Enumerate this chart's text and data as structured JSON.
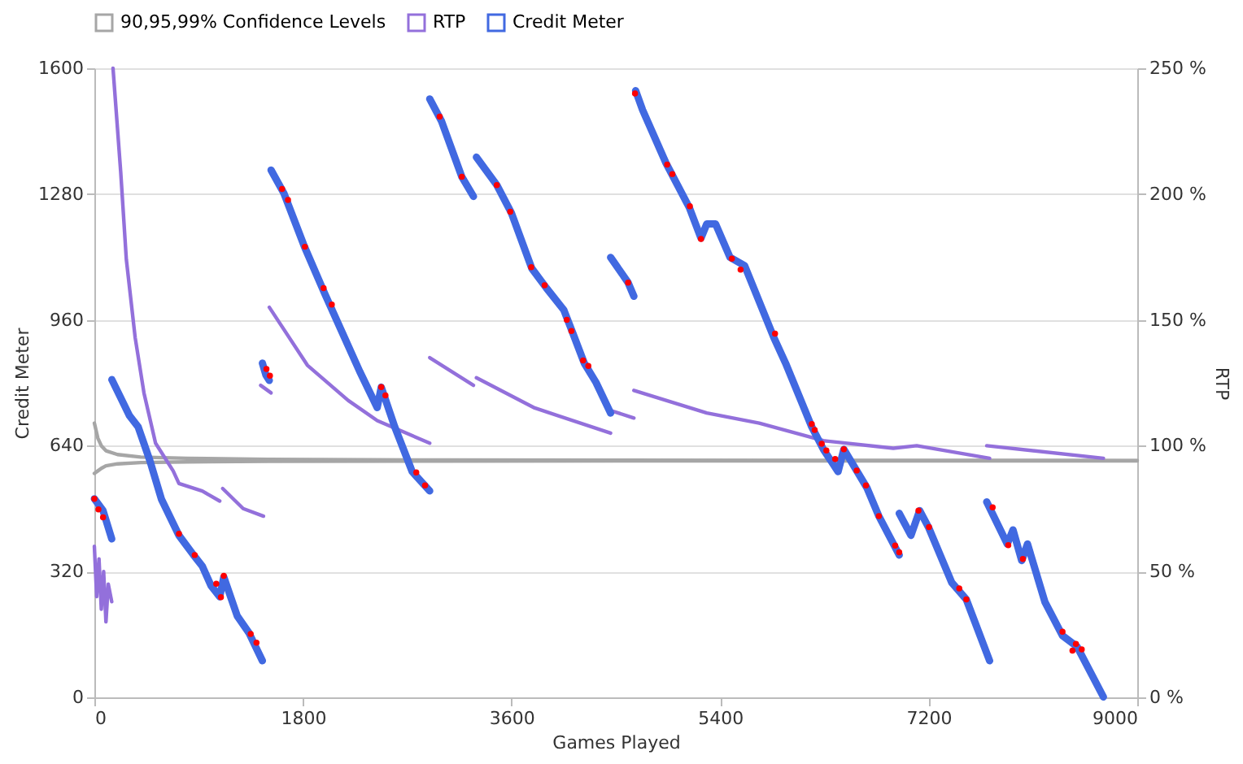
{
  "chart_data": {
    "type": "line",
    "xlabel": "Games Played",
    "ylabel": "Credit Meter",
    "y2label": "RTP",
    "xlim": [
      0,
      9000
    ],
    "xticks": [
      0,
      1800,
      3600,
      5400,
      7200,
      9000
    ],
    "ylim": [
      0,
      1600
    ],
    "yticks": [
      0,
      320,
      640,
      960,
      1280,
      1600
    ],
    "y2lim": [
      0,
      250
    ],
    "y2ticks": [
      {
        "value": 0,
        "label": "0 %"
      },
      {
        "value": 50,
        "label": "50 %"
      },
      {
        "value": 100,
        "label": "100 %"
      },
      {
        "value": 150,
        "label": "150 %"
      },
      {
        "value": 200,
        "label": "200 %"
      },
      {
        "value": 250,
        "label": "250 %"
      }
    ],
    "grid": "y",
    "legend": "top",
    "line_style": "solid",
    "series": [
      {
        "name": "90,95,99% Confidence Levels",
        "axis": "y2",
        "color": "#a6a6a6",
        "x": [
          0,
          30,
          60,
          100,
          200,
          400,
          800,
          1500,
          3000,
          6000,
          9000
        ],
        "values": [
          109,
          103,
          100,
          98,
          96.5,
          95.5,
          95,
          94.6,
          94.3,
          94.2,
          94.1
        ]
      },
      {
        "axis": "y2",
        "color": "#a6a6a6",
        "x": [
          0,
          30,
          60,
          100,
          200,
          400,
          800,
          1500,
          3000,
          6000,
          9000
        ],
        "values": [
          89,
          90,
          91,
          92,
          92.8,
          93.3,
          93.6,
          93.8,
          93.9,
          94,
          94
        ]
      },
      {
        "name": "RTP",
        "axis": "y2",
        "color": "#9370db",
        "x": [
          161,
          227,
          276,
          352,
          428,
          528,
          680,
          730,
          931,
          1082
        ],
        "values": [
          250,
          209,
          174,
          143,
          121,
          101,
          90,
          85,
          82,
          78
        ]
      },
      {
        "axis": "y2",
        "color": "#9370db",
        "x": [
          0,
          20,
          40,
          60,
          80,
          100,
          120,
          150
        ],
        "values": [
          60,
          40,
          55,
          35,
          50,
          30,
          45,
          38
        ]
      },
      {
        "axis": "y2",
        "color": "#9370db",
        "x": [
          1107,
          1284,
          1460
        ],
        "values": [
          83,
          75,
          72
        ]
      },
      {
        "axis": "y2",
        "color": "#9370db",
        "x": [
          1435,
          1525
        ],
        "values": [
          124,
          121
        ]
      },
      {
        "axis": "y2",
        "color": "#9370db",
        "x": [
          1510,
          1838,
          2190,
          2441,
          2894
        ],
        "values": [
          155,
          132,
          118,
          110,
          101
        ]
      },
      {
        "axis": "y2",
        "color": "#9370db",
        "x": [
          2894,
          3272
        ],
        "values": [
          135,
          124
        ]
      },
      {
        "axis": "y2",
        "color": "#9370db",
        "x": [
          3297,
          3800,
          4455
        ],
        "values": [
          127,
          115,
          105
        ]
      },
      {
        "axis": "y2",
        "color": "#9370db",
        "x": [
          4455,
          4656
        ],
        "values": [
          114,
          111
        ]
      },
      {
        "axis": "y2",
        "color": "#9370db",
        "x": [
          4656,
          5285,
          5738,
          6291,
          6895,
          7097,
          7726
        ],
        "values": [
          122,
          113,
          109,
          102,
          99,
          100,
          95
        ]
      },
      {
        "axis": "y2",
        "color": "#9370db",
        "x": [
          7701,
          8708
        ],
        "values": [
          100,
          95
        ]
      },
      {
        "name": "Credit Meter",
        "color": "#4169e1",
        "x": [
          151,
          302,
          378,
          478,
          579,
          730,
          856,
          931,
          1007,
          1082,
          1117,
          1233,
          1334,
          1450
        ],
        "values": [
          808,
          717,
          688,
          603,
          504,
          412,
          362,
          334,
          284,
          256,
          306,
          207,
          164,
          93
        ]
      },
      {
        "color": "#4169e1",
        "x": [
          0,
          75,
          150
        ],
        "values": [
          505,
          475,
          403
        ]
      },
      {
        "color": "#4169e1",
        "x": [
          1450,
          1480,
          1510
        ],
        "values": [
          850,
          820,
          806
        ]
      },
      {
        "color": "#4169e1",
        "x": [
          1525,
          1636,
          1812,
          1988,
          2139,
          2290,
          2441,
          2476,
          2592,
          2743,
          2894
        ],
        "values": [
          1341,
          1282,
          1147,
          1027,
          928,
          829,
          737,
          789,
          688,
          574,
          525
        ]
      },
      {
        "color": "#4169e1",
        "x": [
          2894,
          2995,
          3171,
          3272
        ],
        "values": [
          1522,
          1466,
          1324,
          1274
        ]
      },
      {
        "color": "#4169e1",
        "x": [
          3297,
          3473,
          3599,
          3775,
          3901,
          4052,
          4127,
          4228,
          4329,
          4455
        ],
        "values": [
          1374,
          1303,
          1232,
          1091,
          1041,
          985,
          928,
          850,
          801,
          723
        ]
      },
      {
        "color": "#4169e1",
        "x": [
          4455,
          4606,
          4656
        ],
        "values": [
          1119,
          1055,
          1020
        ]
      },
      {
        "color": "#4169e1",
        "x": [
          4671,
          4731,
          4933,
          5134,
          5235,
          5285,
          5361,
          5486,
          5612,
          5864,
          5965,
          6191,
          6291,
          6418,
          6468,
          6669,
          6770,
          6946
        ],
        "values": [
          1543,
          1494,
          1359,
          1246,
          1168,
          1204,
          1204,
          1119,
          1098,
          915,
          850,
          688,
          631,
          574,
          631,
          532,
          461,
          362
        ]
      },
      {
        "color": "#4169e1",
        "x": [
          6946,
          7047,
          7122,
          7198,
          7399,
          7525,
          7726
        ],
        "values": [
          468,
          412,
          475,
          433,
          292,
          249,
          93
        ]
      },
      {
        "color": "#4169e1",
        "x": [
          7701,
          7878,
          7928,
          8003,
          8053,
          8204,
          8355,
          8481,
          8708
        ],
        "values": [
          497,
          390,
          426,
          348,
          390,
          242,
          157,
          129,
          1
        ]
      },
      {
        "type": "scatter",
        "color": "#ff0000",
        "marker": "circle",
        "x": [
          0,
          35,
          75,
          730,
          866,
          1052,
          1092,
          1117,
          1349,
          1399,
          1485,
          1515,
          1620,
          1671,
          1817,
          1978,
          2049,
          2476,
          2512,
          2778,
          2854,
          2980,
          3171,
          3473,
          3589,
          3770,
          3886,
          4077,
          4117,
          4218,
          4263,
          4606,
          4666,
          4943,
          4988,
          5139,
          5235,
          5501,
          5577,
          5874,
          6191,
          6216,
          6277,
          6317,
          6393,
          6468,
          6579,
          6659,
          6770,
          6911,
          6946,
          7112,
          7203,
          7464,
          7525,
          7752,
          7887,
          8013,
          8355,
          8441,
          8471,
          8521
        ],
        "values": [
          505,
          478,
          458,
          416,
          362,
          289,
          255,
          309,
          161,
          139,
          835,
          818,
          1293,
          1265,
          1146,
          1041,
          999,
          789,
          768,
          572,
          539,
          1477,
          1324,
          1303,
          1235,
          1094,
          1048,
          960,
          932,
          857,
          843,
          1055,
          1536,
          1355,
          1331,
          1249,
          1166,
          1116,
          1088,
          925,
          695,
          680,
          645,
          628,
          606,
          631,
          577,
          539,
          461,
          386,
          369,
          475,
          433,
          277,
          249,
          483,
          387,
          352,
          167,
          119,
          136,
          122
        ]
      }
    ]
  }
}
